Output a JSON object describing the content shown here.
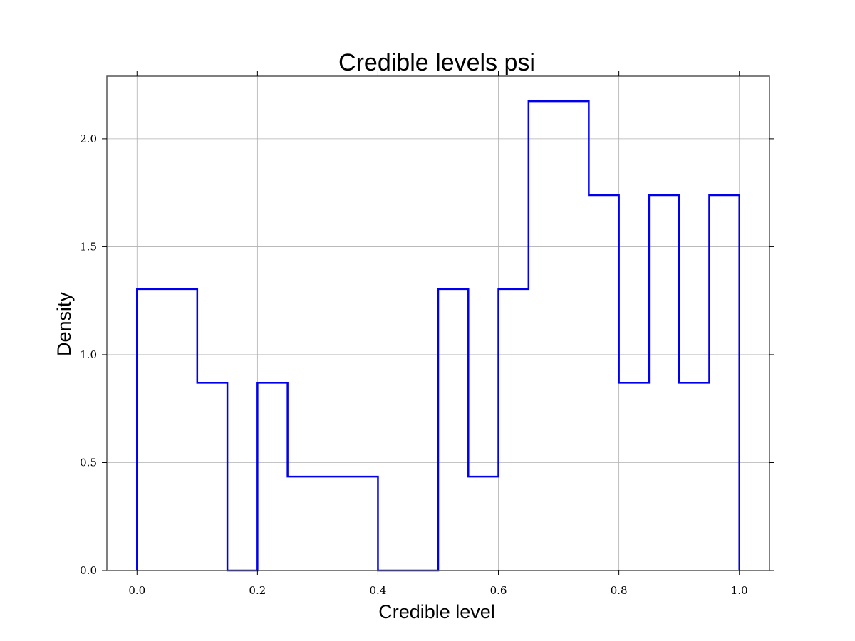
{
  "chart_data": {
    "type": "histogram",
    "title": "Credible levels psi",
    "xlabel": "Credible level",
    "ylabel": "Density",
    "xlim": [
      -0.05,
      1.05
    ],
    "ylim": [
      0,
      2.29
    ],
    "grid": true,
    "color": "#0000ee",
    "histtype": "step",
    "bin_edges": [
      0.0,
      0.05,
      0.1,
      0.15,
      0.2,
      0.25,
      0.3,
      0.35,
      0.4,
      0.45,
      0.5,
      0.55,
      0.6,
      0.65,
      0.7,
      0.75,
      0.8,
      0.85,
      0.9,
      0.95,
      1.0
    ],
    "values": [
      1.304,
      1.304,
      0.87,
      0.0,
      0.87,
      0.435,
      0.435,
      0.435,
      0.0,
      0.0,
      1.304,
      0.435,
      1.304,
      2.174,
      2.174,
      1.739,
      0.87,
      1.739,
      0.87,
      1.739
    ],
    "xticks": [
      0.0,
      0.2,
      0.4,
      0.6,
      0.8,
      1.0
    ],
    "xtick_labels": [
      "0.0",
      "0.2",
      "0.4",
      "0.6",
      "0.8",
      "1.0"
    ],
    "yticks": [
      0.0,
      0.5,
      1.0,
      1.5,
      2.0
    ],
    "ytick_labels": [
      "0.0",
      "0.5",
      "1.0",
      "1.5",
      "2.0"
    ]
  }
}
